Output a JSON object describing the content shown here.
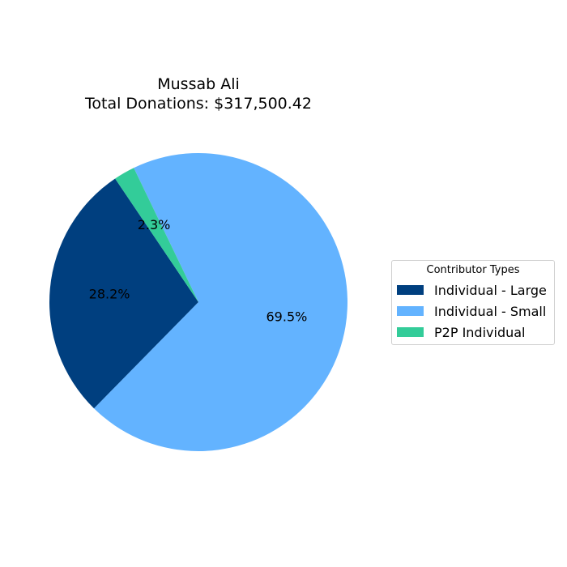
{
  "chart_data": {
    "type": "pie",
    "title": "Mussab Ali",
    "subtitle": "Total Donations: $317,500.42",
    "slices": [
      {
        "label": "Individual - Large",
        "percent": 28.2,
        "display": "28.2%",
        "color": "#003f7f"
      },
      {
        "label": "Individual - Small",
        "percent": 69.5,
        "display": "69.5%",
        "color": "#63b3ff"
      },
      {
        "label": "P2P Individual",
        "percent": 2.3,
        "display": "2.3%",
        "color": "#33cc99"
      }
    ],
    "legend": {
      "title": "Contributor Types",
      "placement": "right"
    }
  }
}
